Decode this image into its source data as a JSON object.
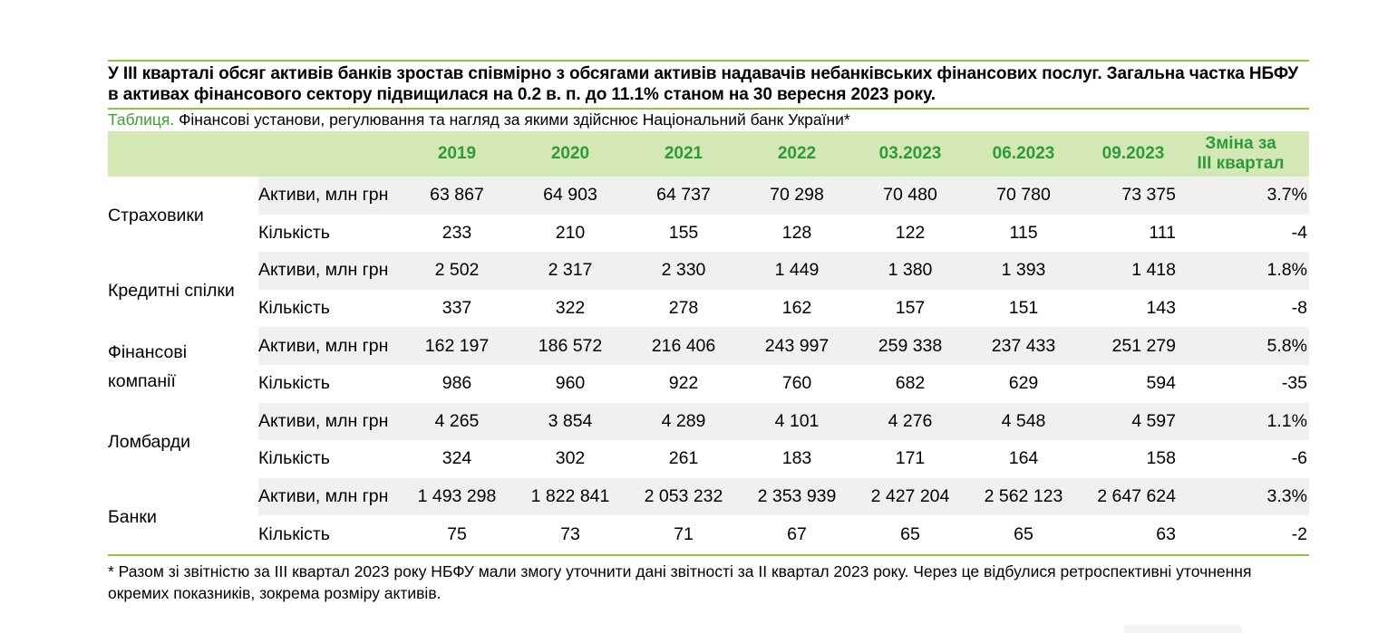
{
  "headline": "У ІІІ кварталі обсяг активів банків зростав співмірно з обсягами активів надавачів небанківських фінансових послуг. Загальна частка НБФУ в активах фінансового сектору підвищилася на 0.2 в. п. до 11.1% станом на 30 вересня 2023 року.",
  "caption": {
    "lead": "Таблиця.",
    "text": " Фінансові установи, регулювання та нагляд за якими здійснює Національний банк України*"
  },
  "columns": [
    "2019",
    "2020",
    "2021",
    "2022",
    "03.2023",
    "06.2023",
    "09.2023"
  ],
  "change_header": [
    "Зміна за",
    "ІІІ квартал"
  ],
  "groups": [
    {
      "name": [
        "Страховики"
      ],
      "rows": [
        {
          "metric": "Активи, млн грн",
          "values": [
            "63 867",
            "64 903",
            "64 737",
            "70 298",
            "70 480",
            "70 780",
            "73 375"
          ],
          "change": "3.7%"
        },
        {
          "metric": "Кількість",
          "values": [
            "233",
            "210",
            "155",
            "128",
            "122",
            "115",
            "111"
          ],
          "change": "-4"
        }
      ]
    },
    {
      "name": [
        "Кредитні спілки"
      ],
      "rows": [
        {
          "metric": "Активи, млн грн",
          "values": [
            "2 502",
            "2 317",
            "2 330",
            "1 449",
            "1 380",
            "1 393",
            "1 418"
          ],
          "change": "1.8%"
        },
        {
          "metric": "Кількість",
          "values": [
            "337",
            "322",
            "278",
            "162",
            "157",
            "151",
            "143"
          ],
          "change": "-8"
        }
      ]
    },
    {
      "name": [
        "Фінансові",
        "компанії"
      ],
      "rows": [
        {
          "metric": "Активи, млн грн",
          "values": [
            "162 197",
            "186 572",
            "216 406",
            "243 997",
            "259 338",
            "237 433",
            "251 279"
          ],
          "change": "5.8%"
        },
        {
          "metric": "Кількість",
          "values": [
            "986",
            "960",
            "922",
            "760",
            "682",
            "629",
            "594"
          ],
          "change": "-35"
        }
      ]
    },
    {
      "name": [
        "Ломбарди"
      ],
      "rows": [
        {
          "metric": "Активи, млн грн",
          "values": [
            "4 265",
            "3 854",
            "4 289",
            "4 101",
            "4 276",
            "4 548",
            "4 597"
          ],
          "change": "1.1%"
        },
        {
          "metric": "Кількість",
          "values": [
            "324",
            "302",
            "261",
            "183",
            "171",
            "164",
            "158"
          ],
          "change": "-6"
        }
      ]
    },
    {
      "name": [
        "Банки"
      ],
      "rows": [
        {
          "metric": "Активи, млн грн",
          "values": [
            "1 493 298",
            "1 822 841",
            "2 053 232",
            "2 353 939",
            "2 427 204",
            "2 562 123",
            "2 647 624"
          ],
          "change": "3.3%"
        },
        {
          "metric": "Кількість",
          "values": [
            "75",
            "73",
            "71",
            "67",
            "65",
            "65",
            "63"
          ],
          "change": "-2"
        }
      ]
    }
  ],
  "footnote": "* Разом зі звітністю за ІІІ квартал 2023 року НБФУ мали змогу уточнити дані звітності за ІІ квартал 2023 року. Через це відбулися ретроспективні уточнення окремих показників, зокрема розміру активів.",
  "colors": {
    "accent_green": "#8dc63f",
    "header_bg": "#d3e8b5",
    "header_text": "#2e9b3a",
    "row_shade": "#f0f0f0",
    "caption_lead": "#3f9e2f"
  }
}
